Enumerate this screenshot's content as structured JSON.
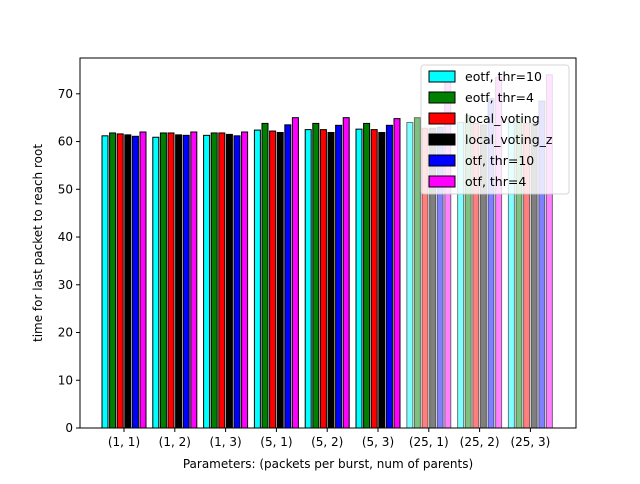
{
  "chart_data": {
    "type": "bar",
    "xlabel": "Parameters: (packets per burst, num of parents)",
    "ylabel": "time for last packet to reach root",
    "categories": [
      "(1, 1)",
      "(1, 2)",
      "(1, 3)",
      "(5, 1)",
      "(5, 2)",
      "(5, 3)",
      "(25, 1)",
      "(25, 2)",
      "(25, 3)"
    ],
    "ylim": [
      0,
      77.5
    ],
    "yticks": [
      0,
      10,
      20,
      30,
      40,
      50,
      60,
      70
    ],
    "legend_position": "upper right",
    "series": [
      {
        "name": "eotf, thr=10",
        "color": "#00ffff",
        "values": [
          61.2,
          60.9,
          61.3,
          62.4,
          62.5,
          62.6,
          64.0,
          64.0,
          64.0
        ]
      },
      {
        "name": "eotf, thr=4",
        "color": "#008000",
        "values": [
          61.8,
          61.8,
          61.8,
          63.8,
          63.8,
          63.8,
          65.0,
          65.5,
          65.0
        ]
      },
      {
        "name": "local_voting",
        "color": "#ff0000",
        "values": [
          61.6,
          61.8,
          61.8,
          62.2,
          62.5,
          62.5,
          62.8,
          63.8,
          63.8
        ]
      },
      {
        "name": "local_voting_z",
        "color": "#000000",
        "values": [
          61.4,
          61.4,
          61.5,
          61.9,
          61.9,
          61.9,
          62.8,
          63.5,
          63.8
        ]
      },
      {
        "name": "otf, thr=10",
        "color": "#0000ff",
        "values": [
          61.1,
          61.3,
          61.2,
          63.5,
          63.4,
          63.4,
          63.0,
          69.0,
          68.5
        ]
      },
      {
        "name": "otf, thr=4",
        "color": "#ff00ff",
        "values": [
          62.0,
          62.0,
          62.0,
          65.0,
          65.0,
          64.8,
          73.0,
          73.5,
          74.0
        ]
      }
    ]
  }
}
